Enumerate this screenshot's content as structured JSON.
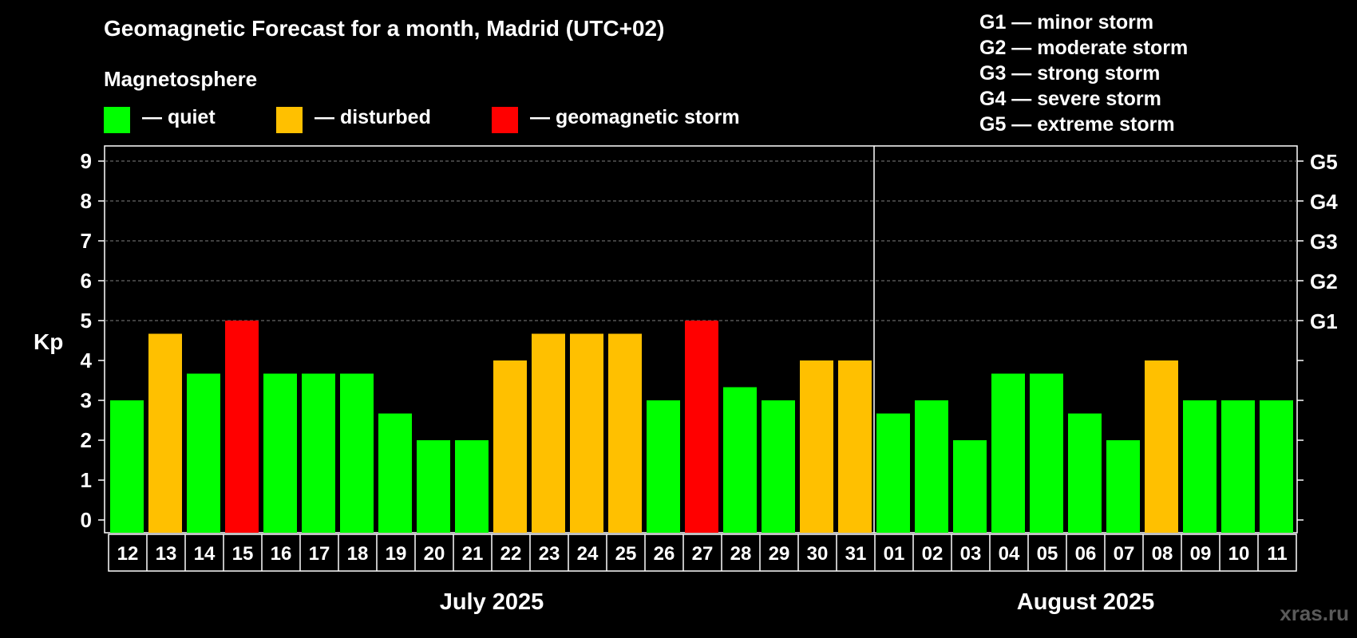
{
  "title": "Geomagnetic Forecast for a month, Madrid (UTC+02)",
  "magnetosphere_label": "Magnetosphere",
  "legend": [
    {
      "label": "— quiet",
      "color": "#00ff00"
    },
    {
      "label": "— disturbed",
      "color": "#ffc000"
    },
    {
      "label": "— geomagnetic storm",
      "color": "#ff0000"
    }
  ],
  "g_scale": [
    {
      "level": "G1",
      "text": "G1 — minor storm"
    },
    {
      "level": "G2",
      "text": "G2 — moderate storm"
    },
    {
      "level": "G3",
      "text": "G3 — strong storm"
    },
    {
      "level": "G4",
      "text": "G4 — severe storm"
    },
    {
      "level": "G5",
      "text": "G5 — extreme storm"
    }
  ],
  "watermark": "xras.ru",
  "colors": {
    "quiet": "#00ff00",
    "disturbed": "#ffc000",
    "storm": "#ff0000",
    "grid": "#808080"
  },
  "chart_data": {
    "type": "bar",
    "ylabel": "Kp",
    "ylim": [
      0,
      9
    ],
    "yticks": [
      "0",
      "1",
      "2",
      "3",
      "4",
      "5",
      "6",
      "7",
      "8",
      "9"
    ],
    "right_axis_labels": [
      {
        "kp": 5,
        "label": "G1"
      },
      {
        "kp": 6,
        "label": "G2"
      },
      {
        "kp": 7,
        "label": "G3"
      },
      {
        "kp": 8,
        "label": "G4"
      },
      {
        "kp": 9,
        "label": "G5"
      }
    ],
    "grid": true,
    "months": [
      {
        "label": "July 2025",
        "days": [
          "12",
          "13",
          "14",
          "15",
          "16",
          "17",
          "18",
          "19",
          "20",
          "21",
          "22",
          "23",
          "24",
          "25",
          "26",
          "27",
          "28",
          "29",
          "30",
          "31"
        ]
      },
      {
        "label": "August 2025",
        "days": [
          "01",
          "02",
          "03",
          "04",
          "05",
          "06",
          "07",
          "08",
          "09",
          "10",
          "11"
        ]
      }
    ],
    "categories": [
      "12",
      "13",
      "14",
      "15",
      "16",
      "17",
      "18",
      "19",
      "20",
      "21",
      "22",
      "23",
      "24",
      "25",
      "26",
      "27",
      "28",
      "29",
      "30",
      "31",
      "01",
      "02",
      "03",
      "04",
      "05",
      "06",
      "07",
      "08",
      "09",
      "10",
      "11"
    ],
    "values": [
      3,
      4.67,
      3.67,
      5,
      3.67,
      3.67,
      3.67,
      2.67,
      2,
      2,
      4,
      4.67,
      4.67,
      4.67,
      3,
      5,
      3.33,
      3,
      4,
      4,
      2.67,
      3,
      2,
      3.67,
      3.67,
      2.67,
      2,
      4,
      3,
      3,
      3
    ],
    "status": [
      "quiet",
      "disturbed",
      "quiet",
      "storm",
      "quiet",
      "quiet",
      "quiet",
      "quiet",
      "quiet",
      "quiet",
      "disturbed",
      "disturbed",
      "disturbed",
      "disturbed",
      "quiet",
      "storm",
      "quiet",
      "quiet",
      "disturbed",
      "disturbed",
      "quiet",
      "quiet",
      "quiet",
      "quiet",
      "quiet",
      "quiet",
      "quiet",
      "disturbed",
      "quiet",
      "quiet",
      "quiet"
    ]
  }
}
